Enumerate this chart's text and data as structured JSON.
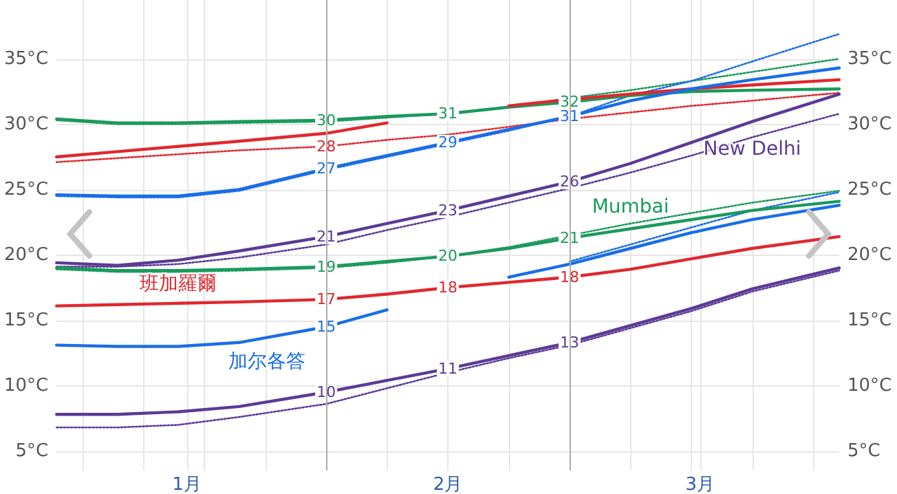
{
  "chart_data": {
    "type": "line",
    "x": [
      "--01-01",
      "--01-08",
      "--01-15",
      "--01-22",
      "--02-01",
      "--02-08",
      "--02-15",
      "--02-22",
      "--03-01",
      "--03-08",
      "--03-15",
      "--03-22",
      "--04-01"
    ],
    "series": [
      {
        "color": "#1a9a5c",
        "values": [
          30.4,
          30.1,
          30.1,
          30.2,
          30.3,
          30.6,
          30.8,
          31.3,
          31.7,
          32.2,
          32.5,
          32.6,
          32.7
        ],
        "value_labels": [
          null,
          null,
          null,
          null,
          "30",
          null,
          "31",
          null,
          "32",
          null,
          null,
          null,
          null
        ]
      },
      {
        "color": "#1a9a5c",
        "line_style": "dotted",
        "values": [
          30.3,
          30.0,
          30.0,
          30.1,
          30.2,
          30.5,
          30.8,
          31.3,
          32.0,
          32.6,
          33.3,
          34.0,
          35.0
        ]
      },
      {
        "color": "#e0282e",
        "values": [
          27.5,
          27.9,
          28.3,
          28.7,
          29.3,
          30.1,
          null,
          31.4,
          31.9,
          32.3,
          32.7,
          33.0,
          33.4
        ]
      },
      {
        "color": "#e0282e",
        "line_style": "dotted",
        "values": [
          27.1,
          27.4,
          27.7,
          28.0,
          28.3,
          28.8,
          29.2,
          29.8,
          30.4,
          30.9,
          31.4,
          31.8,
          32.4
        ],
        "value_labels": [
          null,
          null,
          null,
          null,
          "28",
          null,
          null,
          null,
          null,
          null,
          null,
          null,
          null
        ]
      },
      {
        "color": "#1a6ee6",
        "values": [
          24.6,
          24.5,
          24.5,
          25.0,
          26.6,
          27.6,
          28.6,
          29.6,
          30.6,
          31.8,
          32.7,
          33.4,
          34.3
        ],
        "value_labels": [
          null,
          null,
          null,
          null,
          "27",
          null,
          "29",
          null,
          "31",
          null,
          null,
          null,
          null
        ]
      },
      {
        "color": "#1a6ee6",
        "line_style": "dotted",
        "values": [
          24.5,
          24.4,
          24.4,
          24.9,
          26.5,
          27.5,
          28.5,
          29.5,
          30.6,
          32.2,
          33.3,
          34.8,
          36.9
        ]
      },
      {
        "name": "New Delhi",
        "color": "#5b3a96",
        "values": [
          19.4,
          19.2,
          19.6,
          20.3,
          21.4,
          22.4,
          23.4,
          24.5,
          25.6,
          27.0,
          28.6,
          30.2,
          32.3
        ],
        "value_labels": [
          null,
          null,
          null,
          null,
          "21",
          null,
          "23",
          null,
          "26",
          null,
          null,
          null,
          null
        ]
      },
      {
        "color": "#5b3a96",
        "line_style": "dotted",
        "values": [
          19.1,
          19.1,
          19.3,
          19.8,
          20.8,
          21.9,
          22.9,
          24.0,
          25.1,
          26.3,
          27.6,
          29.0,
          30.8
        ]
      },
      {
        "name": "Mumbai",
        "color": "#1a9a5c",
        "values": [
          19.0,
          18.8,
          18.8,
          18.9,
          19.1,
          19.5,
          19.9,
          20.5,
          21.3,
          22.0,
          22.7,
          23.4,
          24.1
        ],
        "value_labels": [
          null,
          null,
          null,
          null,
          "19",
          null,
          "20",
          null,
          "21",
          null,
          null,
          null,
          null
        ]
      },
      {
        "color": "#1a9a5c",
        "line_style": "dotted",
        "values": [
          18.9,
          18.7,
          18.7,
          18.8,
          19.0,
          19.4,
          19.9,
          20.6,
          21.5,
          22.4,
          23.2,
          24.0,
          24.9
        ]
      },
      {
        "name": "班加羅爾",
        "color": "#e0282e",
        "values": [
          16.1,
          16.2,
          16.3,
          16.4,
          16.6,
          17.0,
          17.5,
          17.9,
          18.3,
          18.9,
          19.7,
          20.5,
          21.4
        ],
        "value_labels": [
          null,
          null,
          null,
          null,
          "17",
          null,
          "18",
          null,
          "18",
          null,
          null,
          null,
          null
        ]
      },
      {
        "name": "加尔各答",
        "color": "#1a6ee6",
        "values": [
          13.1,
          13.0,
          13.0,
          13.3,
          14.5,
          15.8,
          null,
          18.3,
          19.3,
          20.5,
          21.7,
          22.7,
          23.8
        ],
        "value_labels": [
          null,
          null,
          null,
          null,
          "15",
          null,
          null,
          null,
          null,
          null,
          null,
          null,
          null
        ]
      },
      {
        "color": "#1a6ee6",
        "line_style": "dotted",
        "values": [
          null,
          null,
          null,
          null,
          null,
          null,
          null,
          null,
          19.5,
          20.8,
          22.1,
          23.4,
          24.8
        ]
      },
      {
        "color": "#5b3a96",
        "values": [
          7.8,
          7.8,
          8.0,
          8.4,
          9.5,
          10.4,
          11.3,
          12.3,
          13.3,
          14.6,
          15.9,
          17.4,
          19.0
        ],
        "value_labels": [
          null,
          null,
          null,
          null,
          "10",
          null,
          "11",
          null,
          "13",
          null,
          null,
          null,
          null
        ]
      },
      {
        "color": "#5b3a96",
        "line_style": "dotted",
        "values": [
          6.8,
          6.8,
          7.0,
          7.6,
          8.6,
          9.8,
          11.0,
          12.1,
          13.1,
          14.4,
          15.7,
          17.2,
          18.8
        ]
      }
    ],
    "xlim": [
      "--01-01",
      "--04-01"
    ],
    "xticks": [
      {
        "value": "--01-04",
        "label": null
      },
      {
        "value": "--01-11",
        "label": null
      },
      {
        "value": "--01-16",
        "label": "1月"
      },
      {
        "value": "--01-18",
        "label": null
      },
      {
        "value": "--01-25",
        "label": null
      },
      {
        "value": "--02-08",
        "label": null
      },
      {
        "value": "--02-15",
        "label": "2月"
      },
      {
        "value": "--02-22",
        "label": null
      },
      {
        "value": "--03-08",
        "label": null
      },
      {
        "value": "--03-15",
        "label": null
      },
      {
        "value": "--03-16",
        "label": "3月"
      },
      {
        "value": "--03-22",
        "label": null
      },
      {
        "value": "--03-29",
        "label": null
      }
    ],
    "ylim": [
      3.5,
      39.5
    ],
    "yticks": [
      {
        "value": 5,
        "label": "5°C"
      },
      {
        "value": 10,
        "label": "10°C"
      },
      {
        "value": 15,
        "label": "15°C"
      },
      {
        "value": 20,
        "label": "20°C"
      },
      {
        "value": 25,
        "label": "25°C"
      },
      {
        "value": 30,
        "label": "30°C"
      },
      {
        "value": 35,
        "label": "35°C"
      }
    ],
    "y2lim": [
      3.5,
      39.5
    ],
    "y2ticks": [
      {
        "value": 5,
        "label": "5°C"
      },
      {
        "value": 10,
        "label": "10°C"
      },
      {
        "value": 15,
        "label": "15°C"
      },
      {
        "value": 20,
        "label": "20°C"
      },
      {
        "value": 25,
        "label": "25°C"
      },
      {
        "value": 30,
        "label": "30°C"
      },
      {
        "value": 35,
        "label": "35°C"
      }
    ],
    "ref_lines": [
      {
        "axis": "x",
        "value": "--02-01",
        "color": "#aaaaaa"
      },
      {
        "axis": "x",
        "value": "--03-01",
        "color": "#aaaaaa"
      }
    ],
    "grid": true,
    "legend": false,
    "marker": "none"
  }
}
